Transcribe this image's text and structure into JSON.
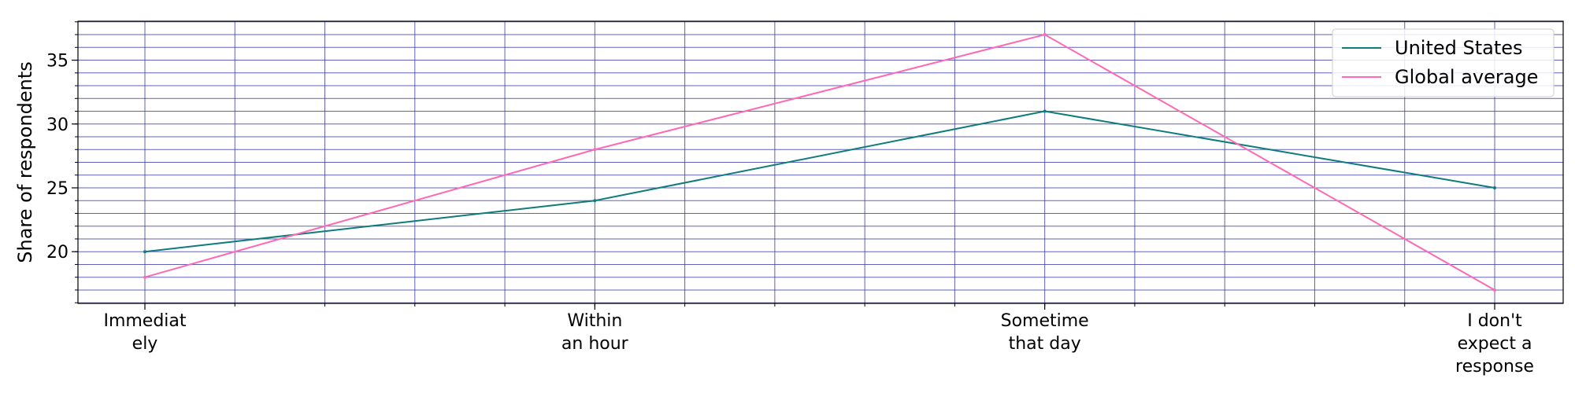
{
  "chart_data": {
    "type": "line",
    "categories": [
      "Immediately",
      "Within an hour",
      "Sometime that day",
      "I don't expect a response"
    ],
    "category_tick_lines": [
      [
        "Immediat",
        "ely"
      ],
      [
        "Within",
        "an hour"
      ],
      [
        "Sometime",
        "that day"
      ],
      [
        "I don't",
        "expect a",
        "response"
      ]
    ],
    "series": [
      {
        "name": "United States",
        "values": [
          20,
          24,
          31,
          25
        ],
        "color": "#0f7b7b"
      },
      {
        "name": "Global average",
        "values": [
          18,
          28,
          37,
          17
        ],
        "color": "#ff69b4"
      }
    ],
    "xlabel": "",
    "ylabel": "Share of respondents",
    "ylim": [
      15.95,
      38.05
    ],
    "y_ticks": [
      20,
      25,
      30,
      35
    ],
    "y_minor_step": 1,
    "x_minor_subdivisions": 5,
    "grid": true,
    "grid_color": "#3a3aa8",
    "legend_position": "top-right"
  }
}
